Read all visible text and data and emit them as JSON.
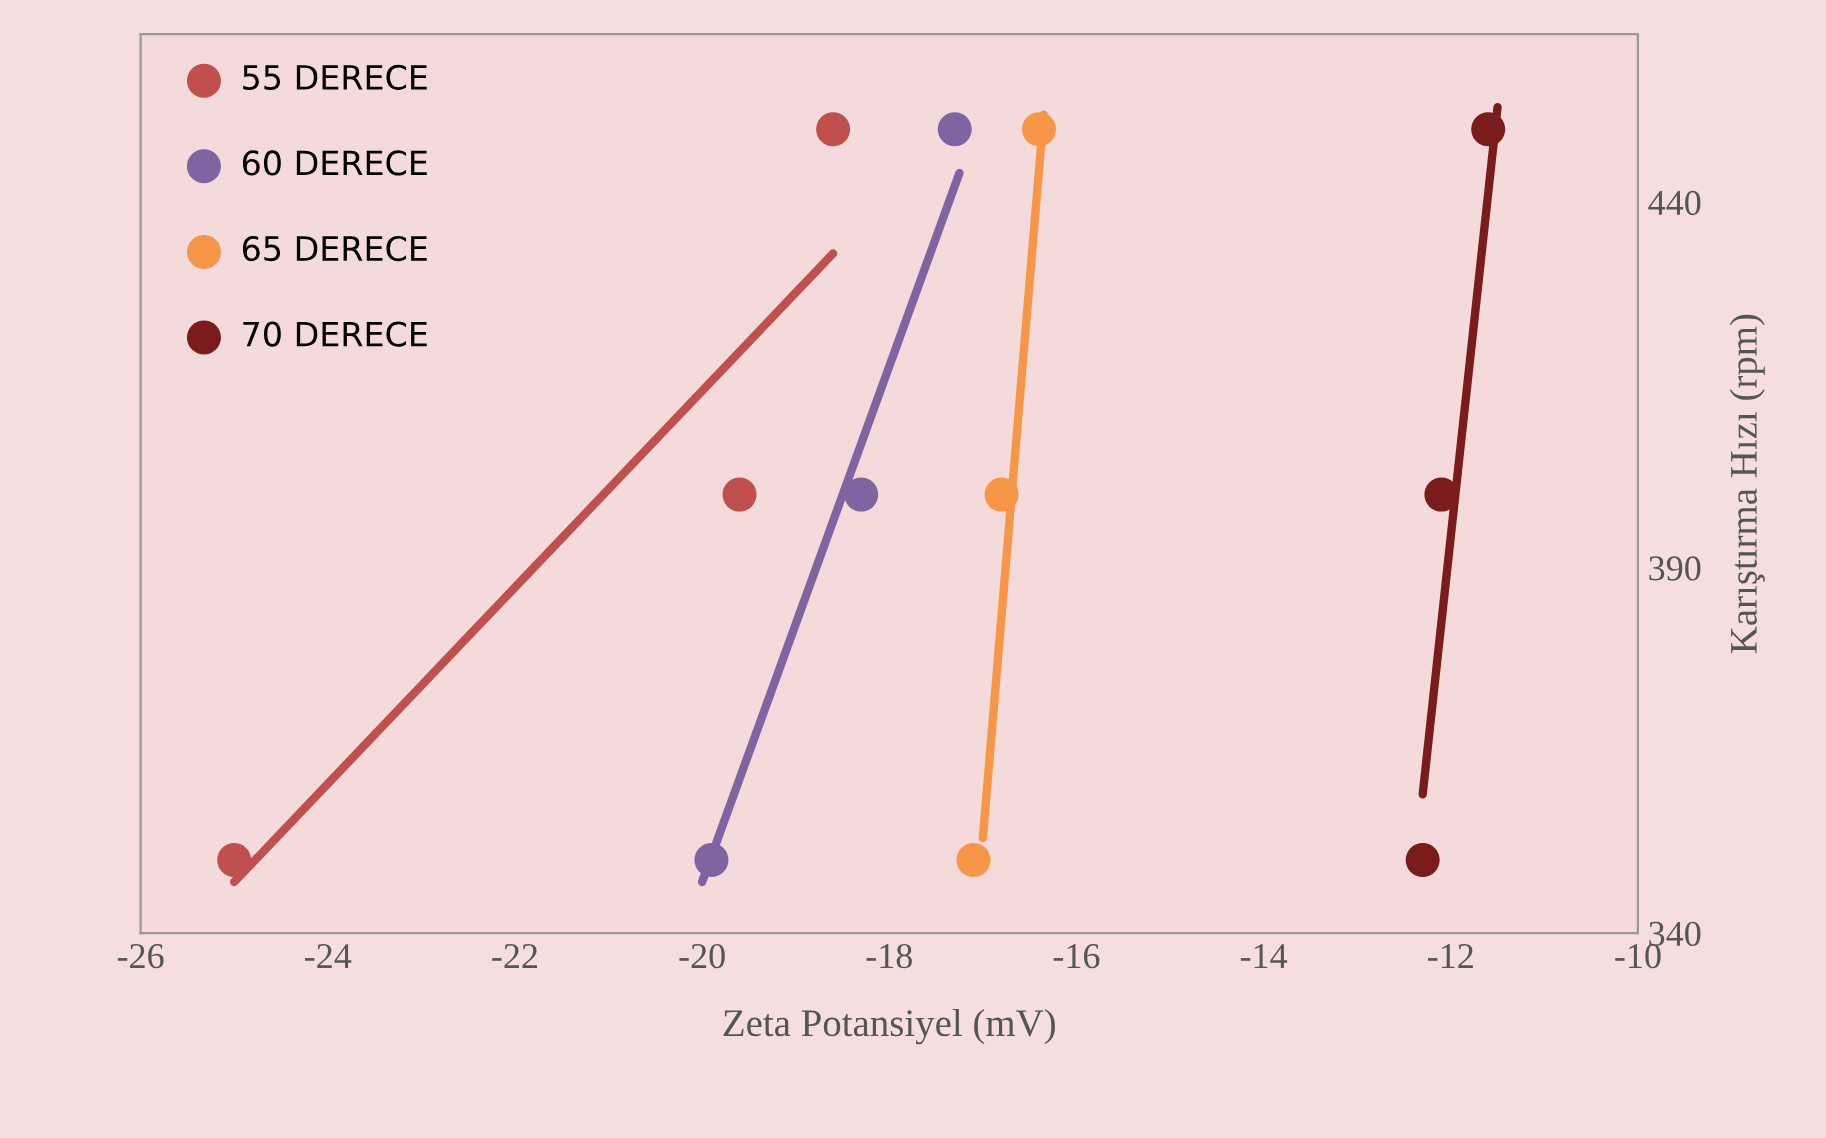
{
  "chart_data": {
    "type": "scatter",
    "xlabel": "Zeta Potansiyel (mV)",
    "ylabel": "Karıştırma Hızı (rpm)",
    "xlim": [
      -26,
      -10
    ],
    "xticks": [
      -26,
      -24,
      -22,
      -20,
      -18,
      -16,
      -14,
      -12,
      -10
    ],
    "ylim": [
      340,
      463
    ],
    "yticks": [
      340,
      390,
      440
    ],
    "grid": false,
    "legend": "top left",
    "marker": "circle",
    "series": [
      {
        "name": "55 DERECE",
        "color": "#c0504d",
        "x": [
          -25.0,
          -19.6,
          -18.6
        ],
        "values": [
          350,
          400,
          450
        ]
      },
      {
        "name": "60 DERECE",
        "color": "#8064a2",
        "x": [
          -19.9,
          -18.3,
          -17.3
        ],
        "values": [
          350,
          400,
          450
        ]
      },
      {
        "name": "65 DERECE",
        "color": "#f79646",
        "x": [
          -17.1,
          -16.8,
          -16.4
        ],
        "values": [
          350,
          400,
          450
        ]
      },
      {
        "name": "70 DERECE",
        "color": "#7b1c1c",
        "x": [
          -12.3,
          -12.1,
          -11.6
        ],
        "values": [
          350,
          400,
          450
        ]
      },
      {
        "type": "line",
        "marker": "none",
        "color": "#c0504d",
        "x": [
          -25.0,
          -18.6
        ],
        "values": [
          347,
          433
        ]
      },
      {
        "type": "line",
        "marker": "none",
        "color": "#8064a2",
        "x": [
          -20.0,
          -17.25
        ],
        "values": [
          347,
          444
        ]
      },
      {
        "type": "line",
        "marker": "none",
        "color": "#f79646",
        "x": [
          -17.0,
          -16.35
        ],
        "values": [
          353,
          452
        ]
      },
      {
        "type": "line",
        "marker": "none",
        "color": "#7b1c1c",
        "x": [
          -12.3,
          -11.5
        ],
        "values": [
          359,
          453
        ]
      }
    ]
  }
}
